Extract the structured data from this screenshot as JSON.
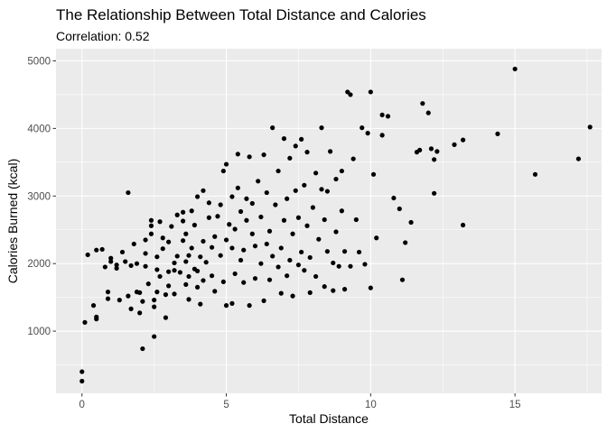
{
  "chart_data": {
    "type": "scatter",
    "title": "The Relationship Between Total Distance and Calories",
    "subtitle": "Correlation: 0.52",
    "xlabel": "Total Distance",
    "ylabel": "Calories Burned (kcal)",
    "xlim": [
      -0.9,
      18.0
    ],
    "ylim": [
      80,
      5180
    ],
    "xticks": [
      0,
      5,
      10,
      15
    ],
    "yticks": [
      1000,
      2000,
      3000,
      4000,
      5000
    ],
    "grid": true,
    "legend": "none",
    "colors": {
      "panel_background": "#ebebeb",
      "grid_major": "#ffffff",
      "point": "#000000",
      "tick_text": "#4d4d4d"
    },
    "points": [
      [
        0.0,
        400
      ],
      [
        0.0,
        260
      ],
      [
        0.1,
        1130
      ],
      [
        0.2,
        2130
      ],
      [
        0.4,
        1380
      ],
      [
        0.5,
        1210
      ],
      [
        0.5,
        1180
      ],
      [
        0.5,
        2200
      ],
      [
        0.7,
        2210
      ],
      [
        0.8,
        1950
      ],
      [
        0.9,
        1580
      ],
      [
        0.9,
        1480
      ],
      [
        1.0,
        2080
      ],
      [
        1.0,
        2030
      ],
      [
        1.2,
        1930
      ],
      [
        1.2,
        1980
      ],
      [
        1.3,
        1460
      ],
      [
        1.4,
        2170
      ],
      [
        1.5,
        2030
      ],
      [
        1.6,
        3050
      ],
      [
        1.6,
        1520
      ],
      [
        1.7,
        1330
      ],
      [
        1.7,
        1970
      ],
      [
        1.8,
        2290
      ],
      [
        1.9,
        1580
      ],
      [
        1.9,
        2000
      ],
      [
        2.0,
        1570
      ],
      [
        2.0,
        1270
      ],
      [
        2.1,
        1440
      ],
      [
        2.1,
        740
      ],
      [
        2.2,
        1960
      ],
      [
        2.2,
        2150
      ],
      [
        2.2,
        2350
      ],
      [
        2.3,
        1700
      ],
      [
        2.4,
        2440
      ],
      [
        2.4,
        2640
      ],
      [
        2.4,
        2560
      ],
      [
        2.5,
        1460
      ],
      [
        2.5,
        1360
      ],
      [
        2.5,
        920
      ],
      [
        2.6,
        1910
      ],
      [
        2.6,
        2100
      ],
      [
        2.6,
        1580
      ],
      [
        2.7,
        1810
      ],
      [
        2.7,
        2620
      ],
      [
        2.8,
        2220
      ],
      [
        2.8,
        2380
      ],
      [
        2.9,
        1540
      ],
      [
        2.9,
        1200
      ],
      [
        3.0,
        1670
      ],
      [
        3.0,
        1880
      ],
      [
        3.0,
        2320
      ],
      [
        3.1,
        2550
      ],
      [
        3.2,
        1900
      ],
      [
        3.2,
        2010
      ],
      [
        3.2,
        1550
      ],
      [
        3.3,
        2110
      ],
      [
        3.3,
        2720
      ],
      [
        3.4,
        1870
      ],
      [
        3.5,
        2340
      ],
      [
        3.5,
        2630
      ],
      [
        3.5,
        2760
      ],
      [
        3.6,
        1690
      ],
      [
        3.6,
        2030
      ],
      [
        3.6,
        2440
      ],
      [
        3.7,
        1470
      ],
      [
        3.7,
        1810
      ],
      [
        3.7,
        2120
      ],
      [
        3.8,
        2230
      ],
      [
        3.8,
        2780
      ],
      [
        3.9,
        1920
      ],
      [
        3.9,
        2570
      ],
      [
        4.0,
        1650
      ],
      [
        4.0,
        1890
      ],
      [
        4.0,
        2990
      ],
      [
        4.1,
        1400
      ],
      [
        4.1,
        2100
      ],
      [
        4.2,
        1750
      ],
      [
        4.2,
        2330
      ],
      [
        4.2,
        3080
      ],
      [
        4.3,
        2020
      ],
      [
        4.4,
        2680
      ],
      [
        4.4,
        2900
      ],
      [
        4.5,
        1820
      ],
      [
        4.5,
        2240
      ],
      [
        4.6,
        1590
      ],
      [
        4.6,
        2400
      ],
      [
        4.7,
        2700
      ],
      [
        4.8,
        2120
      ],
      [
        4.8,
        2870
      ],
      [
        4.9,
        1730
      ],
      [
        4.9,
        3370
      ],
      [
        5.0,
        1380
      ],
      [
        5.0,
        2350
      ],
      [
        5.0,
        3470
      ],
      [
        5.1,
        2580
      ],
      [
        5.2,
        1410
      ],
      [
        5.2,
        2230
      ],
      [
        5.2,
        2990
      ],
      [
        5.3,
        1850
      ],
      [
        5.3,
        2510
      ],
      [
        5.4,
        3120
      ],
      [
        5.4,
        3620
      ],
      [
        5.5,
        2050
      ],
      [
        5.5,
        2770
      ],
      [
        5.6,
        1720
      ],
      [
        5.6,
        2200
      ],
      [
        5.7,
        2640
      ],
      [
        5.7,
        2960
      ],
      [
        5.8,
        1380
      ],
      [
        5.8,
        3580
      ],
      [
        5.9,
        2440
      ],
      [
        5.9,
        2890
      ],
      [
        6.0,
        1780
      ],
      [
        6.0,
        2260
      ],
      [
        6.1,
        3220
      ],
      [
        6.2,
        2000
      ],
      [
        6.2,
        2690
      ],
      [
        6.3,
        1450
      ],
      [
        6.3,
        3610
      ],
      [
        6.4,
        2290
      ],
      [
        6.4,
        3050
      ],
      [
        6.5,
        1760
      ],
      [
        6.5,
        2480
      ],
      [
        6.6,
        2110
      ],
      [
        6.6,
        4010
      ],
      [
        6.7,
        2870
      ],
      [
        6.8,
        1950
      ],
      [
        6.8,
        3370
      ],
      [
        6.9,
        1560
      ],
      [
        6.9,
        2230
      ],
      [
        7.0,
        3850
      ],
      [
        7.0,
        2640
      ],
      [
        7.1,
        1820
      ],
      [
        7.1,
        2960
      ],
      [
        7.2,
        2050
      ],
      [
        7.2,
        3560
      ],
      [
        7.3,
        1520
      ],
      [
        7.3,
        2440
      ],
      [
        7.4,
        3080
      ],
      [
        7.4,
        3740
      ],
      [
        7.5,
        1980
      ],
      [
        7.5,
        2680
      ],
      [
        7.6,
        3840
      ],
      [
        7.6,
        2170
      ],
      [
        7.7,
        1900
      ],
      [
        7.7,
        3160
      ],
      [
        7.8,
        2560
      ],
      [
        7.8,
        3650
      ],
      [
        7.9,
        1570
      ],
      [
        7.9,
        2090
      ],
      [
        8.0,
        2830
      ],
      [
        8.1,
        3340
      ],
      [
        8.1,
        1810
      ],
      [
        8.2,
        2360
      ],
      [
        8.3,
        3100
      ],
      [
        8.3,
        4010
      ],
      [
        8.4,
        1660
      ],
      [
        8.4,
        2650
      ],
      [
        8.5,
        2180
      ],
      [
        8.5,
        3070
      ],
      [
        8.6,
        3660
      ],
      [
        8.7,
        1600
      ],
      [
        8.7,
        2010
      ],
      [
        8.8,
        2470
      ],
      [
        8.8,
        3250
      ],
      [
        8.9,
        1960
      ],
      [
        9.0,
        2780
      ],
      [
        9.0,
        3370
      ],
      [
        9.1,
        1620
      ],
      [
        9.1,
        2180
      ],
      [
        9.2,
        4540
      ],
      [
        9.3,
        4500
      ],
      [
        9.3,
        1960
      ],
      [
        9.4,
        3550
      ],
      [
        9.5,
        2650
      ],
      [
        9.6,
        2170
      ],
      [
        9.7,
        4010
      ],
      [
        9.8,
        1990
      ],
      [
        9.9,
        3930
      ],
      [
        10.0,
        4540
      ],
      [
        10.0,
        1640
      ],
      [
        10.1,
        3320
      ],
      [
        10.2,
        2380
      ],
      [
        10.4,
        3900
      ],
      [
        10.4,
        4200
      ],
      [
        10.6,
        4180
      ],
      [
        10.8,
        2970
      ],
      [
        11.0,
        2810
      ],
      [
        11.1,
        1760
      ],
      [
        11.2,
        2310
      ],
      [
        11.4,
        2610
      ],
      [
        11.6,
        3650
      ],
      [
        11.7,
        3680
      ],
      [
        11.8,
        4370
      ],
      [
        12.0,
        4230
      ],
      [
        12.1,
        3700
      ],
      [
        12.2,
        3540
      ],
      [
        12.2,
        3040
      ],
      [
        12.3,
        3660
      ],
      [
        12.9,
        3760
      ],
      [
        13.2,
        3830
      ],
      [
        13.2,
        2570
      ],
      [
        14.4,
        3920
      ],
      [
        15.0,
        4880
      ],
      [
        15.7,
        3320
      ],
      [
        17.2,
        3550
      ],
      [
        17.6,
        4020
      ]
    ]
  }
}
